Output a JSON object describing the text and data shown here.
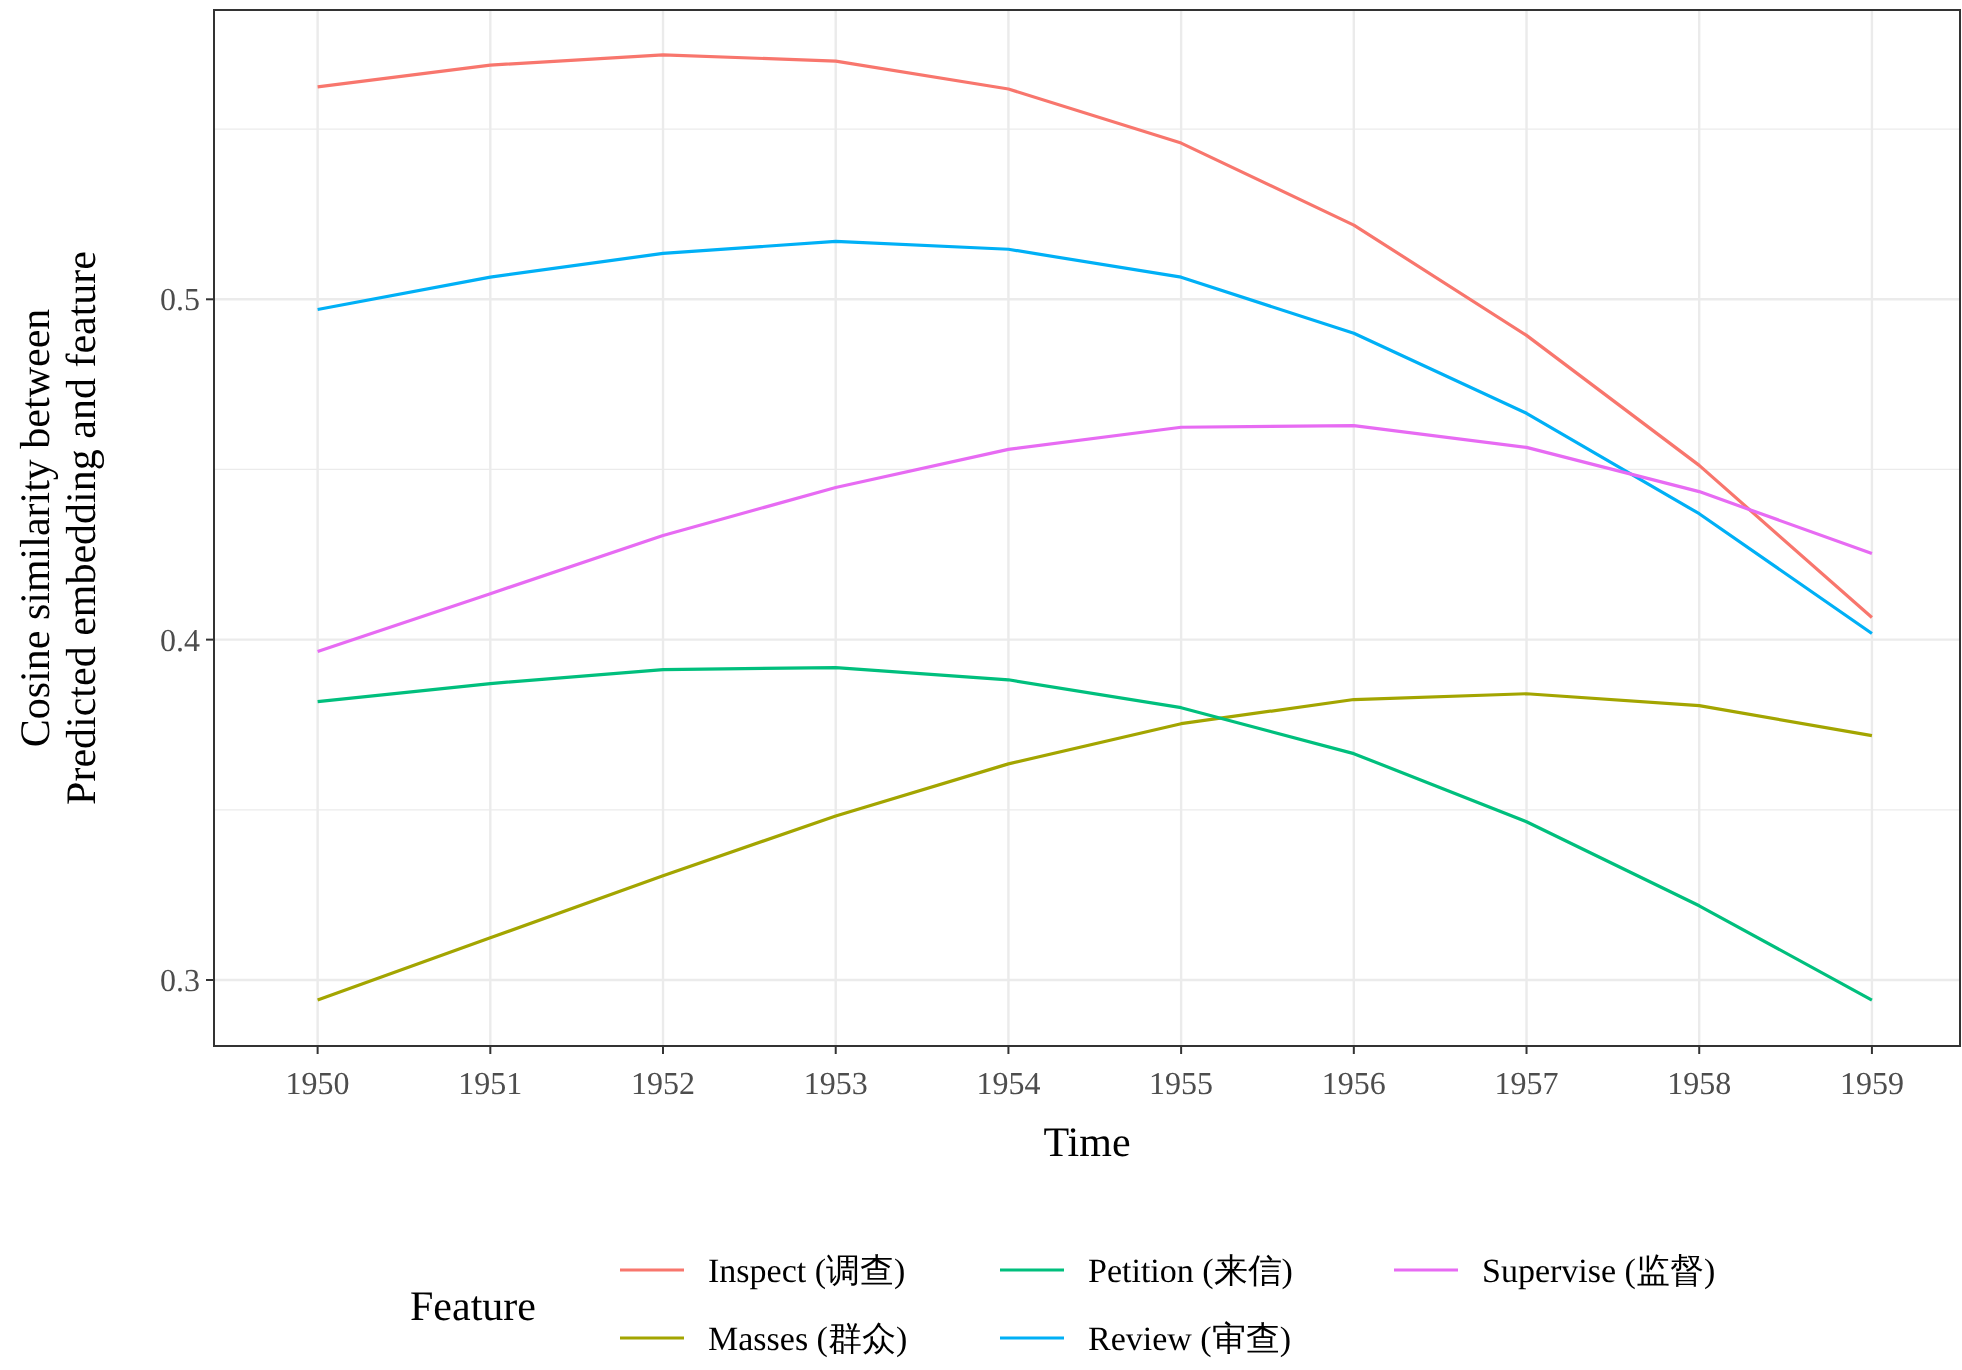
{
  "chart_data": {
    "type": "line",
    "xlabel": "Time",
    "ylabel": "Cosine similarity between\nPredicted embedding and feature",
    "legend_title": "Feature",
    "legend": "bottom",
    "grid": true,
    "x": [
      1950,
      1951,
      1952,
      1953,
      1954,
      1955,
      1956,
      1957,
      1958,
      1959
    ],
    "xlim": [
      1949.4,
      1959.51
    ],
    "xticks": [
      1950,
      1951,
      1952,
      1953,
      1954,
      1955,
      1956,
      1957,
      1958,
      1959
    ],
    "ylim": [
      0.2806,
      0.585
    ],
    "yticks": [
      0.3,
      0.4,
      0.5
    ],
    "series": [
      {
        "name": "Inspect (调查)",
        "color": "#f8766d",
        "values": [
          0.5624,
          0.5688,
          0.5718,
          0.57,
          0.5618,
          0.5459,
          0.5218,
          0.4894,
          0.4512,
          0.4065
        ]
      },
      {
        "name": "Masses (群众)",
        "color": "#a3a500",
        "values": [
          0.2941,
          0.3124,
          0.3306,
          0.3482,
          0.3635,
          0.3753,
          0.3824,
          0.3841,
          0.3806,
          0.3718
        ]
      },
      {
        "name": "Petition (来信)",
        "color": "#00bf7d",
        "values": [
          0.3818,
          0.3871,
          0.3912,
          0.3918,
          0.3882,
          0.38,
          0.3665,
          0.3465,
          0.3218,
          0.2941
        ]
      },
      {
        "name": "Review (审查)",
        "color": "#00b0f6",
        "values": [
          0.497,
          0.5065,
          0.5135,
          0.517,
          0.5147,
          0.5065,
          0.49,
          0.4665,
          0.437,
          0.4018
        ]
      },
      {
        "name": "Supervise (监督)",
        "color": "#e76bf3",
        "values": [
          0.3965,
          0.4135,
          0.4306,
          0.4447,
          0.4559,
          0.4624,
          0.4629,
          0.4565,
          0.4435,
          0.4253
        ]
      }
    ]
  }
}
